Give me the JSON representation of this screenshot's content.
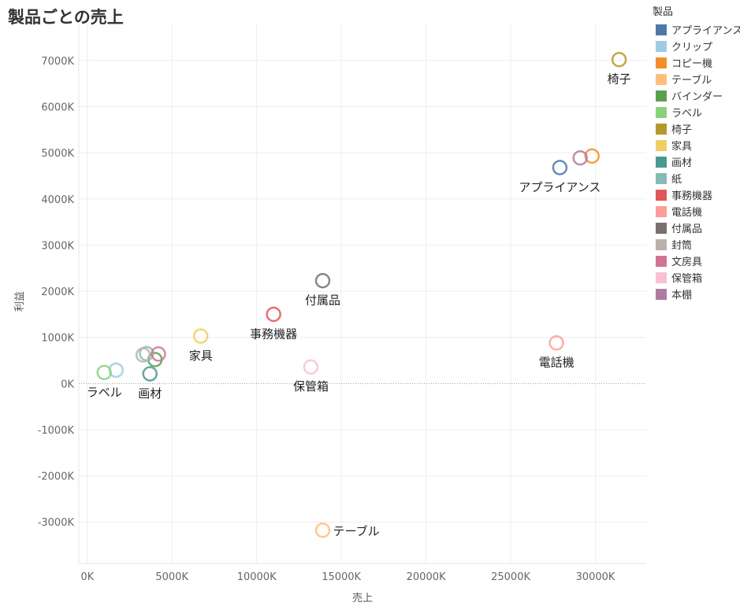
{
  "title": "製品ごとの売上",
  "legend": {
    "title": "製品",
    "items": [
      {
        "name": "アプライアンス",
        "color": "#4e79a7"
      },
      {
        "name": "クリップ",
        "color": "#a0cbe8"
      },
      {
        "name": "コピー機",
        "color": "#f28e2b"
      },
      {
        "name": "テーブル",
        "color": "#ffbe7d"
      },
      {
        "name": "バインダー",
        "color": "#59a14f"
      },
      {
        "name": "ラベル",
        "color": "#8cd17d"
      },
      {
        "name": "椅子",
        "color": "#b6992d"
      },
      {
        "name": "家具",
        "color": "#f1ce63"
      },
      {
        "name": "画材",
        "color": "#499894"
      },
      {
        "name": "紙",
        "color": "#86bcb6"
      },
      {
        "name": "事務機器",
        "color": "#e15759"
      },
      {
        "name": "電話機",
        "color": "#ff9d9a"
      },
      {
        "name": "付属品",
        "color": "#79706e"
      },
      {
        "name": "封筒",
        "color": "#bab0ac"
      },
      {
        "name": "文房具",
        "color": "#d37295"
      },
      {
        "name": "保管箱",
        "color": "#fabfd2"
      },
      {
        "name": "本棚",
        "color": "#b07aa1"
      }
    ]
  },
  "chart_data": {
    "type": "scatter",
    "title": "製品ごとの売上",
    "xlabel": "売上",
    "ylabel": "利益",
    "xlim": [
      -500,
      33000
    ],
    "ylim": [
      -3900,
      7800
    ],
    "x_ticks": [
      0,
      5000,
      10000,
      15000,
      20000,
      25000,
      30000
    ],
    "x_tick_labels": [
      "0K",
      "5000K",
      "10000K",
      "15000K",
      "20000K",
      "25000K",
      "30000K"
    ],
    "y_ticks": [
      -3000,
      -2000,
      -1000,
      0,
      1000,
      2000,
      3000,
      4000,
      5000,
      6000,
      7000
    ],
    "y_tick_labels": [
      "-3000K",
      "-2000K",
      "-1000K",
      "0K",
      "1000K",
      "2000K",
      "3000K",
      "4000K",
      "5000K",
      "6000K",
      "7000K"
    ],
    "grid": true,
    "legend_position": "right",
    "points": [
      {
        "name": "アプライアンス",
        "x": 27900,
        "y": 4680,
        "label": "アプライアンス",
        "label_pos": "below"
      },
      {
        "name": "クリップ",
        "x": 1700,
        "y": 290,
        "label": "",
        "label_pos": ""
      },
      {
        "name": "コピー機",
        "x": 29800,
        "y": 4930,
        "label": "",
        "label_pos": ""
      },
      {
        "name": "テーブル",
        "x": 13900,
        "y": -3180,
        "label": "テーブル",
        "label_pos": "right"
      },
      {
        "name": "バインダー",
        "x": 4000,
        "y": 520,
        "label": "",
        "label_pos": ""
      },
      {
        "name": "ラベル",
        "x": 1000,
        "y": 240,
        "label": "ラベル",
        "label_pos": "below"
      },
      {
        "name": "椅子",
        "x": 31400,
        "y": 7020,
        "label": "椅子",
        "label_pos": "below"
      },
      {
        "name": "家具",
        "x": 6700,
        "y": 1030,
        "label": "家具",
        "label_pos": "below"
      },
      {
        "name": "画材",
        "x": 3700,
        "y": 210,
        "label": "画材",
        "label_pos": "below"
      },
      {
        "name": "紙",
        "x": 3500,
        "y": 650,
        "label": "",
        "label_pos": ""
      },
      {
        "name": "事務機器",
        "x": 11000,
        "y": 1500,
        "label": "事務機器",
        "label_pos": "below"
      },
      {
        "name": "電話機",
        "x": 27700,
        "y": 880,
        "label": "電話機",
        "label_pos": "below"
      },
      {
        "name": "付属品",
        "x": 13900,
        "y": 2230,
        "label": "付属品",
        "label_pos": "below"
      },
      {
        "name": "封筒",
        "x": 3300,
        "y": 620,
        "label": "",
        "label_pos": ""
      },
      {
        "name": "文房具",
        "x": 4200,
        "y": 640,
        "label": "",
        "label_pos": ""
      },
      {
        "name": "保管箱",
        "x": 13200,
        "y": 360,
        "label": "保管箱",
        "label_pos": "below"
      },
      {
        "name": "本棚",
        "x": 29100,
        "y": 4890,
        "label": "",
        "label_pos": ""
      }
    ]
  }
}
